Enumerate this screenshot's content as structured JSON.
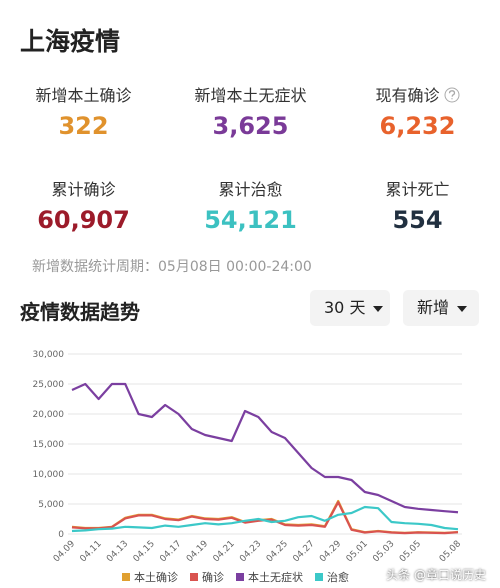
{
  "header": {
    "title": "上海疫情"
  },
  "stats": [
    {
      "label": "新增本土确诊",
      "value": "322",
      "color": "#e0922d"
    },
    {
      "label": "新增本土无症状",
      "value": "3,625",
      "color": "#7a3a98"
    },
    {
      "label": "现有确诊",
      "value": "6,232",
      "color": "#e8622c"
    },
    {
      "label": "累计确诊",
      "value": "60,907",
      "color": "#9c1b2a"
    },
    {
      "label": "累计治愈",
      "value": "54,121",
      "color": "#3cc1c1"
    },
    {
      "label": "累计死亡",
      "value": "554",
      "color": "#213040"
    }
  ],
  "period": "新增数据统计周期：05月08日 00:00-24:00",
  "section_title": "疫情数据趋势",
  "dropdowns": [
    "30 天",
    "新增"
  ],
  "watermark": "头条 @章口说历史",
  "chart_data": {
    "type": "line",
    "categories": [
      "04.09",
      null,
      "04.11",
      null,
      "04.13",
      null,
      "04.15",
      null,
      "04.17",
      null,
      "04.19",
      null,
      "04.21",
      null,
      "04.23",
      null,
      "04.25",
      null,
      "04.27",
      null,
      "04.29",
      null,
      "05.01",
      null,
      "05.03",
      null,
      "05.05",
      null,
      null,
      "05.08"
    ],
    "series": [
      {
        "name": "本土确诊",
        "color": "#e0a030",
        "values": [
          1200,
          1000,
          1000,
          1200,
          2700,
          3200,
          3200,
          2600,
          2400,
          3000,
          2600,
          2500,
          2800,
          2000,
          2300,
          2500,
          1600,
          1500,
          1600,
          1300,
          5500,
          800,
          300,
          500,
          300,
          200,
          300,
          250,
          200,
          322
        ]
      },
      {
        "name": "确诊",
        "color": "#d9534f",
        "values": [
          1100,
          950,
          950,
          1150,
          2600,
          3100,
          3100,
          2500,
          2300,
          2900,
          2500,
          2400,
          2700,
          1900,
          2200,
          2400,
          1500,
          1400,
          1500,
          1200,
          5300,
          700,
          250,
          450,
          250,
          150,
          250,
          200,
          150,
          300
        ]
      },
      {
        "name": "本土无症状",
        "color": "#7b3fa0",
        "values": [
          24000,
          25000,
          22500,
          25000,
          25000,
          20000,
          19500,
          21500,
          20000,
          17500,
          16500,
          16000,
          15500,
          20500,
          19500,
          17000,
          16000,
          13500,
          11000,
          9500,
          9500,
          9000,
          7000,
          6500,
          5500,
          4500,
          4200,
          4000,
          3800,
          3625
        ]
      },
      {
        "name": "治愈",
        "color": "#3cc8c8",
        "values": [
          500,
          600,
          800,
          900,
          1200,
          1100,
          1000,
          1400,
          1200,
          1500,
          1800,
          1600,
          1800,
          2200,
          2500,
          2000,
          2200,
          2800,
          3000,
          2200,
          3200,
          3500,
          4500,
          4300,
          2000,
          1800,
          1700,
          1500,
          1000,
          800
        ]
      }
    ],
    "ylim": [
      0,
      30000
    ],
    "yticks": [
      0,
      {
        "value": 5000,
        "label": "5,000"
      },
      {
        "value": 10000,
        "label": "10,000"
      },
      {
        "value": 15000,
        "label": "15,000"
      },
      {
        "value": 20000,
        "label": "20,000"
      },
      {
        "value": 25000,
        "label": "25,000"
      },
      {
        "value": 30000,
        "label": "30,000"
      }
    ],
    "grid": true
  }
}
